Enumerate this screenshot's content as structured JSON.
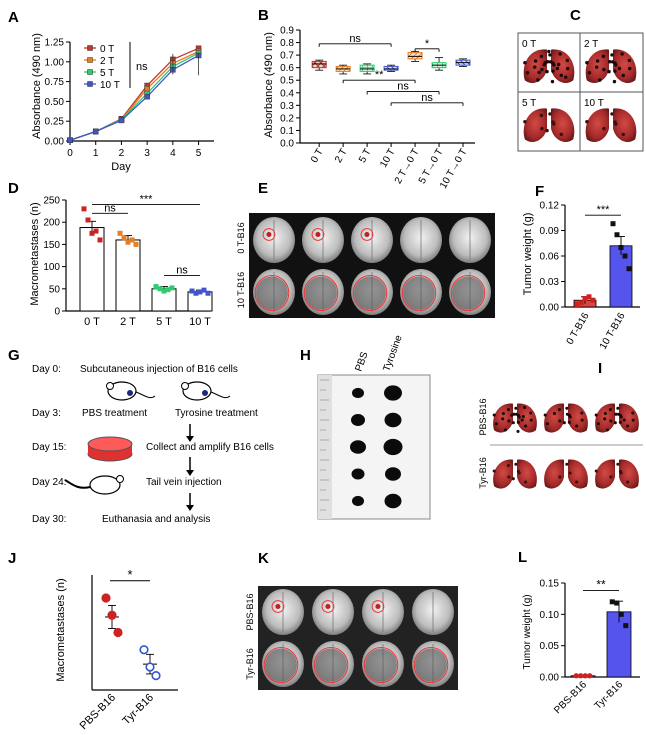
{
  "figure": {
    "panel_labels": [
      "A",
      "B",
      "C",
      "D",
      "E",
      "F",
      "G",
      "H",
      "I",
      "J",
      "K",
      "L"
    ],
    "colors": {
      "t0": "#c0392b",
      "t2": "#e67e22",
      "t5": "#2ecc71",
      "t10": "#4455cc",
      "red": "#cc2222",
      "blue": "#3355cc",
      "pbs_bar": "#dd4444",
      "tyr_bar": "#5555ee",
      "axis": "#000000"
    }
  },
  "chart_data": [
    {
      "panel": "A",
      "type": "line",
      "xlabel": "Day",
      "ylabel": "Absorbance (490 nm)",
      "xlim": [
        0,
        5.6
      ],
      "ylim": [
        0,
        1.25
      ],
      "xticks": [
        "0",
        "1",
        "2",
        "3",
        "4",
        "5"
      ],
      "yticks": [
        "0.00",
        "0.25",
        "0.50",
        "0.75",
        "1.00",
        "1.25"
      ],
      "x": [
        0,
        1,
        2,
        3,
        4,
        5
      ],
      "series": [
        {
          "name": "0 T",
          "values": [
            0.01,
            0.12,
            0.28,
            0.7,
            1.03,
            1.17
          ]
        },
        {
          "name": "2 T",
          "values": [
            0.01,
            0.12,
            0.27,
            0.66,
            0.98,
            1.13
          ]
        },
        {
          "name": "5 T",
          "values": [
            0.01,
            0.12,
            0.27,
            0.6,
            0.94,
            1.11
          ]
        },
        {
          "name": "10 T",
          "values": [
            0.01,
            0.12,
            0.26,
            0.56,
            0.9,
            1.08
          ]
        }
      ],
      "annotation": "ns"
    },
    {
      "panel": "B",
      "type": "box",
      "ylabel": "Absorbance (490 nm)",
      "ylim": [
        0,
        0.9
      ],
      "yticks": [
        "0.0",
        "0.1",
        "0.2",
        "0.3",
        "0.4",
        "0.5",
        "0.6",
        "0.7",
        "0.8",
        "0.9"
      ],
      "categories": [
        "0 T",
        "2 T",
        "5 T",
        "10 T",
        "2 T→0 T",
        "5 T→0 T",
        "10 T→0 T"
      ],
      "boxes": [
        {
          "min": 0.58,
          "q1": 0.6,
          "med": 0.63,
          "q3": 0.65,
          "max": 0.66
        },
        {
          "min": 0.55,
          "q1": 0.57,
          "med": 0.59,
          "q3": 0.61,
          "max": 0.62
        },
        {
          "min": 0.55,
          "q1": 0.57,
          "med": 0.59,
          "q3": 0.62,
          "max": 0.63
        },
        {
          "min": 0.57,
          "q1": 0.58,
          "med": 0.59,
          "q3": 0.61,
          "max": 0.62
        },
        {
          "min": 0.65,
          "q1": 0.67,
          "med": 0.69,
          "q3": 0.72,
          "max": 0.73
        },
        {
          "min": 0.58,
          "q1": 0.6,
          "med": 0.62,
          "q3": 0.64,
          "max": 0.68
        },
        {
          "min": 0.61,
          "q1": 0.62,
          "med": 0.64,
          "q3": 0.66,
          "max": 0.67
        }
      ],
      "sig": [
        "ns",
        "*",
        "**",
        "ns",
        "ns"
      ]
    },
    {
      "panel": "D",
      "type": "bar",
      "ylabel": "Macrometastases (n)",
      "ylim": [
        0,
        250
      ],
      "yticks": [
        "0",
        "50",
        "100",
        "150",
        "200",
        "250"
      ],
      "categories": [
        "0 T",
        "2 T",
        "5 T",
        "10 T"
      ],
      "values": [
        188,
        160,
        50,
        43
      ],
      "errors": [
        14,
        10,
        5,
        4
      ],
      "points": [
        [
          230,
          205,
          175,
          180,
          160
        ],
        [
          175,
          165,
          155,
          160,
          150
        ],
        [
          55,
          50,
          45,
          48,
          52
        ],
        [
          45,
          40,
          43,
          47,
          40
        ]
      ],
      "sig": [
        "***",
        "ns",
        "ns"
      ]
    },
    {
      "panel": "F",
      "type": "bar",
      "ylabel": "Tumor weight (g)",
      "ylim": [
        0,
        0.12
      ],
      "yticks": [
        "0.00",
        "0.03",
        "0.06",
        "0.09",
        "0.12"
      ],
      "categories": [
        "0 T-B16",
        "10 T-B16"
      ],
      "values": [
        0.008,
        0.072
      ],
      "errors": [
        0.004,
        0.011
      ],
      "points": [
        [
          0.003,
          0.005,
          0.01,
          0.012,
          0.008
        ],
        [
          0.098,
          0.085,
          0.07,
          0.06,
          0.045
        ]
      ],
      "sig": [
        "***"
      ]
    },
    {
      "panel": "J",
      "type": "scatter",
      "ylabel": "Macrometastases (n)",
      "categories": [
        "PBS-B16",
        "Tyr-B16"
      ],
      "means": [
        127,
        45
      ],
      "errors": [
        20,
        17
      ],
      "points": [
        [
          160,
          130,
          100
        ],
        [
          70,
          40,
          25
        ]
      ],
      "sig": [
        "*"
      ]
    },
    {
      "panel": "L",
      "type": "bar",
      "ylabel": "Tumor weight (g)",
      "ylim": [
        0,
        0.15
      ],
      "yticks": [
        "0.00",
        "0.05",
        "0.10",
        "0.15"
      ],
      "categories": [
        "PBS-B16",
        "Tyr-B16"
      ],
      "values": [
        0.002,
        0.104
      ],
      "errors": [
        0.001,
        0.017
      ],
      "points": [
        [
          0.002,
          0.002,
          0.002,
          0.002
        ],
        [
          0.12,
          0.118,
          0.1,
          0.082
        ]
      ],
      "sig": [
        "**"
      ]
    }
  ],
  "panel_c": {
    "labels": [
      "0 T",
      "2 T",
      "5 T",
      "10 T"
    ]
  },
  "panel_e": {
    "row_labels": [
      "0 T-B16",
      "10 T-B16"
    ]
  },
  "panel_g": {
    "steps": [
      {
        "day": "Day 0:",
        "text": "Subcutaneous  injection of  B16 cells"
      },
      {
        "day": "Day 3:",
        "text": "PBS treatment",
        "text2": "Tyrosine treatment"
      },
      {
        "day": "Day 15:",
        "text": "Collect and amplify B16 cells"
      },
      {
        "day": "Day 24:",
        "text": "Tail vein injection"
      },
      {
        "day": "Day 30:",
        "text": "Euthanasia and analysis"
      }
    ]
  },
  "panel_h": {
    "col_labels": [
      "PBS",
      "Tyrosine"
    ]
  },
  "panel_i": {
    "row_labels": [
      "PBS-B16",
      "Tyr-B16"
    ]
  },
  "panel_k": {
    "row_labels": [
      "PBS-B16",
      "Tyr-B16"
    ]
  }
}
